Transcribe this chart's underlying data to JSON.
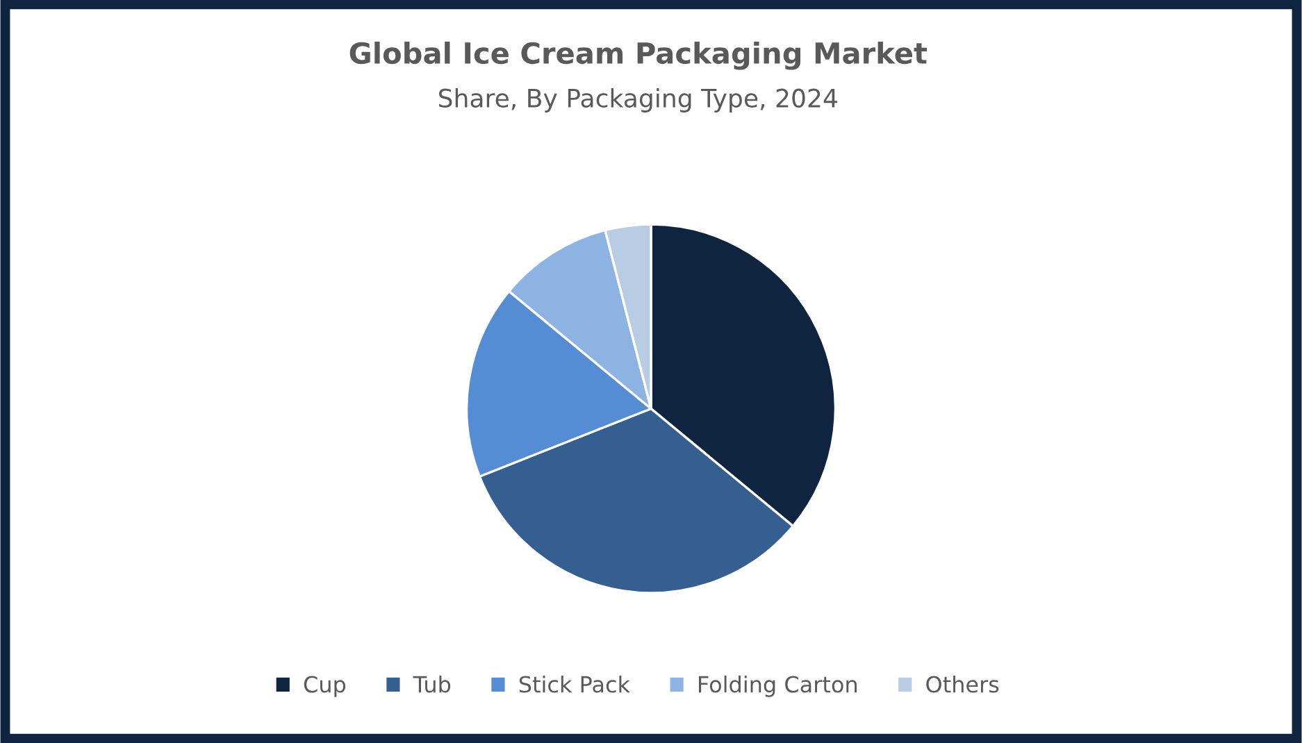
{
  "chart_data": {
    "type": "pie",
    "title": "Global Ice Cream Packaging Market",
    "subtitle": "Share, By Packaging Type, 2024",
    "categories": [
      "Cup",
      "Tub",
      "Stick Pack",
      "Folding Carton",
      "Others"
    ],
    "values": [
      36,
      33,
      17,
      10,
      4
    ],
    "colors": [
      "#0f243e",
      "#365f91",
      "#548dd4",
      "#8db3e2",
      "#b8cce4"
    ],
    "legend": "bottom"
  }
}
